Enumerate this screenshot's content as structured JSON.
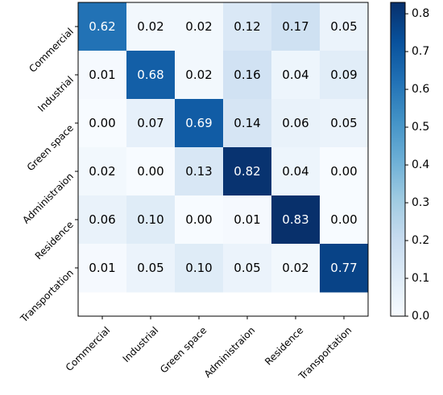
{
  "chart_data": {
    "type": "heatmap",
    "title": "",
    "xlabel": "",
    "ylabel": "",
    "categories_x": [
      "Commercial",
      "Industrial",
      "Green space",
      "Administraion",
      "Residence",
      "Transportation"
    ],
    "categories_y": [
      "Commercial",
      "Industrial",
      "Green space",
      "Administraion",
      "Residence",
      "Transportation"
    ],
    "values": [
      [
        0.62,
        0.02,
        0.02,
        0.12,
        0.17,
        0.05
      ],
      [
        0.01,
        0.68,
        0.02,
        0.16,
        0.04,
        0.09
      ],
      [
        0.0,
        0.07,
        0.69,
        0.14,
        0.06,
        0.05
      ],
      [
        0.02,
        0.0,
        0.13,
        0.82,
        0.04,
        0.0
      ],
      [
        0.06,
        0.1,
        0.0,
        0.01,
        0.83,
        0.0
      ],
      [
        0.01,
        0.05,
        0.1,
        0.05,
        0.02,
        0.77
      ]
    ],
    "value_labels": [
      [
        "0.62",
        "0.02",
        "0.02",
        "0.12",
        "0.17",
        "0.05"
      ],
      [
        "0.01",
        "0.68",
        "0.02",
        "0.16",
        "0.04",
        "0.09"
      ],
      [
        "0.00",
        "0.07",
        "0.69",
        "0.14",
        "0.06",
        "0.05"
      ],
      [
        "0.02",
        "0.00",
        "0.13",
        "0.82",
        "0.04",
        "0.00"
      ],
      [
        "0.06",
        "0.10",
        "0.00",
        "0.01",
        "0.83",
        "0.00"
      ],
      [
        "0.01",
        "0.05",
        "0.10",
        "0.05",
        "0.02",
        "0.77"
      ]
    ],
    "colorscale": "Blues",
    "color_range": [
      0.0,
      0.83
    ],
    "colorbar": {
      "ticks": [
        0.0,
        0.1,
        0.2,
        0.3,
        0.4,
        0.5,
        0.6,
        0.7,
        0.8
      ],
      "tick_labels": [
        "0.0",
        "0.1",
        "0.2",
        "0.3",
        "0.4",
        "0.5",
        "0.6",
        "0.7",
        "0.8"
      ]
    },
    "grid": false,
    "legend": "colorbar-right"
  }
}
